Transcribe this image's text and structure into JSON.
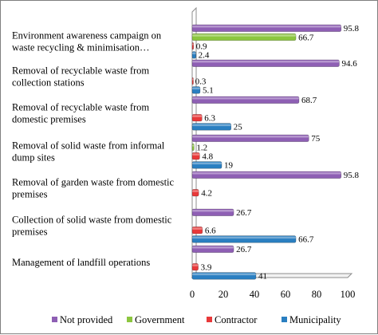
{
  "chart_data": {
    "type": "bar",
    "orientation": "horizontal",
    "categories": [
      [
        "Environment awareness campaign on",
        "waste recycling & minimisation…"
      ],
      [
        "Removal of recyclable waste from",
        "collection stations"
      ],
      [
        "Removal of recyclable waste from",
        "domestic premises"
      ],
      [
        "Removal of solid waste from informal",
        "dump sites"
      ],
      [
        "Removal of garden waste from domestic",
        "premises"
      ],
      [
        "Collection of solid waste from domestic",
        "premises"
      ],
      [
        "Management of landfill operations"
      ]
    ],
    "series": [
      {
        "name": "Not provided",
        "color": "#8e5fb4",
        "values": [
          95.8,
          94.6,
          68.7,
          75,
          95.8,
          26.7,
          26.7
        ]
      },
      {
        "name": "Government",
        "color": "#8cc63f",
        "values": [
          66.7,
          0,
          0,
          1.2,
          0,
          0,
          0
        ]
      },
      {
        "name": "Contractor",
        "color": "#e8393a",
        "values": [
          0.9,
          0.3,
          6.3,
          4.8,
          4.2,
          6.6,
          3.9
        ]
      },
      {
        "name": "Municipality",
        "color": "#2a7fc1",
        "values": [
          2.4,
          5.1,
          25,
          19,
          0,
          66.7,
          41
        ]
      }
    ],
    "value_labels": [
      [
        "95.8",
        "66.7",
        "0.9",
        "2.4"
      ],
      [
        "94.6",
        null,
        "0.3",
        "5.1"
      ],
      [
        "68.7",
        null,
        "6.3",
        "25"
      ],
      [
        "75",
        "1.2",
        "4.8",
        "19"
      ],
      [
        "95.8",
        null,
        "4.2",
        null
      ],
      [
        "26.7",
        null,
        "6.6",
        "66.7"
      ],
      [
        "26.7",
        null,
        "3.9",
        "41"
      ]
    ],
    "xlim": [
      0,
      100
    ],
    "xticks": [
      "0",
      "20",
      "40",
      "60",
      "80",
      "100"
    ],
    "grid": false,
    "legend_position": "bottom",
    "title": "",
    "xlabel": "",
    "ylabel": ""
  }
}
